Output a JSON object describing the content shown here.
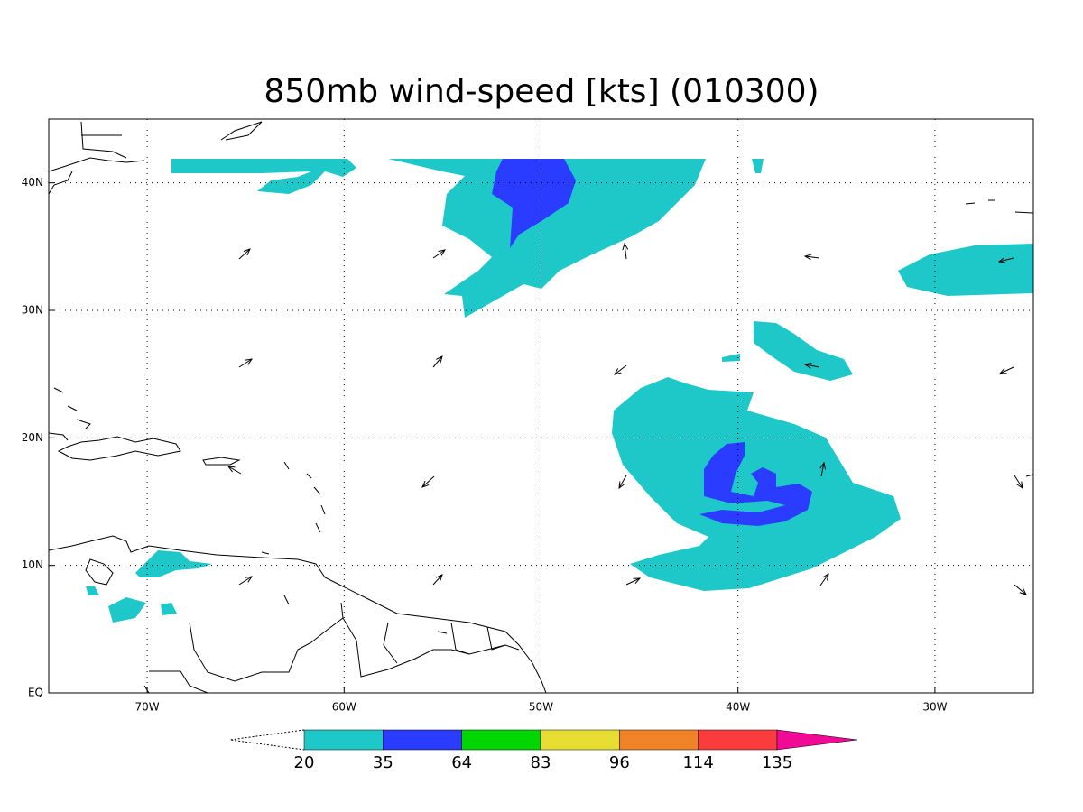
{
  "map": {
    "title": "850mb wind-speed [kts] (010300)",
    "xlim": [
      -75,
      -25
    ],
    "ylim": [
      0,
      45
    ],
    "xticks": [
      {
        "value": -70,
        "label": "70W"
      },
      {
        "value": -60,
        "label": "60W"
      },
      {
        "value": -50,
        "label": "50W"
      },
      {
        "value": -40,
        "label": "40W"
      },
      {
        "value": -30,
        "label": "30W"
      }
    ],
    "yticks": [
      {
        "value": 0,
        "label": "EQ"
      },
      {
        "value": 10,
        "label": "10N"
      },
      {
        "value": 20,
        "label": "20N"
      },
      {
        "value": 30,
        "label": "30N"
      },
      {
        "value": 40,
        "label": "40N"
      }
    ],
    "grid": true,
    "colorbar": {
      "levels": [
        20,
        35,
        64,
        83,
        96,
        114,
        135
      ],
      "colors": [
        "#1ec8c8",
        "#2a3cff",
        "#00d600",
        "#e6dc32",
        "#f08228",
        "#fa3c3c",
        "#f00a96"
      ]
    }
  }
}
